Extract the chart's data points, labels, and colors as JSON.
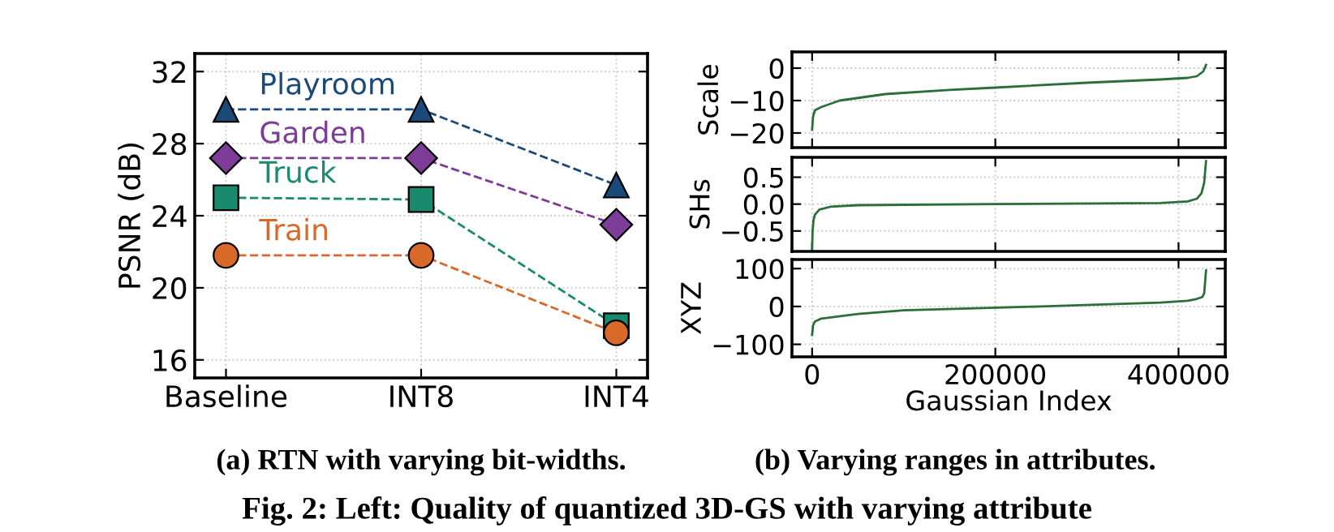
{
  "chart_data": [
    {
      "type": "line",
      "title": "(a) RTN with varying bit-widths.",
      "ylabel": "PSNR (dB)",
      "categories": [
        "Baseline",
        "INT8",
        "INT4"
      ],
      "ylim": [
        15,
        33
      ],
      "yticks": [
        16,
        20,
        24,
        28,
        32
      ],
      "grid": true,
      "line_style": "dashed",
      "series": [
        {
          "name": "Playroom",
          "color": "#1b4a7a",
          "marker": "triangle",
          "values": [
            29.9,
            29.9,
            25.7
          ]
        },
        {
          "name": "Garden",
          "color": "#7d3c98",
          "marker": "diamond",
          "values": [
            27.2,
            27.2,
            23.5
          ]
        },
        {
          "name": "Truck",
          "color": "#1a8a6e",
          "marker": "square",
          "values": [
            25.0,
            24.9,
            17.9
          ]
        },
        {
          "name": "Train",
          "color": "#d9692b",
          "marker": "circle",
          "values": [
            21.8,
            21.8,
            17.5
          ]
        }
      ],
      "annotations": [
        "Fig. 2: Left: Quality of quantized 3D-GS with varying attribute"
      ]
    },
    {
      "type": "line",
      "ylabel": "Scale",
      "xlim": [
        -22000,
        451000
      ],
      "xticks": [
        0,
        200000,
        400000
      ],
      "ylim": [
        -24.5,
        5
      ],
      "yticks": [
        0,
        {
          "value": -10,
          "label": "−10"
        },
        {
          "value": -20,
          "label": "−20"
        }
      ],
      "grid": true,
      "tick_labels": "y",
      "series": [
        {
          "color": "#2a6e3a",
          "x": [
            0,
            1000,
            3000,
            10000,
            30000,
            80000,
            150000,
            200000,
            300000,
            380000,
            410000,
            420000,
            427000,
            430000
          ],
          "values": [
            -19,
            -15,
            -13,
            -12,
            -10,
            -8,
            -6.7,
            -6,
            -4.5,
            -3.5,
            -3,
            -2.5,
            -1,
            1
          ]
        }
      ]
    },
    {
      "type": "line",
      "ylabel": "SHs",
      "xlim": [
        -22000,
        451000
      ],
      "xticks": [
        0,
        200000,
        400000
      ],
      "ylim": [
        -0.88,
        0.87
      ],
      "yticks": [
        0.5,
        {
          "value": 0,
          "label": "0.0"
        },
        {
          "value": -0.5,
          "label": "−0.5"
        }
      ],
      "grid": true,
      "tick_labels": "y",
      "series": [
        {
          "color": "#2a6e3a",
          "x": [
            0,
            500,
            1500,
            3000,
            8000,
            20000,
            50000,
            200000,
            380000,
            410000,
            420000,
            425000,
            428000,
            430000
          ],
          "values": [
            -0.88,
            -0.5,
            -0.3,
            -0.2,
            -0.1,
            -0.05,
            -0.02,
            0,
            0.02,
            0.05,
            0.1,
            0.2,
            0.4,
            0.8
          ]
        }
      ]
    },
    {
      "type": "line",
      "title": "(b) Varying ranges in attributes.",
      "ylabel": "XYZ",
      "xlabel": "Gaussian Index",
      "xlim": [
        -22000,
        451000
      ],
      "xticks": [
        0,
        200000,
        400000
      ],
      "ylim": [
        -133,
        124
      ],
      "yticks": [
        100,
        0,
        {
          "value": -100,
          "label": "−100"
        }
      ],
      "grid": true,
      "series": [
        {
          "color": "#2a6e3a",
          "x": [
            0,
            1000,
            3000,
            10000,
            50000,
            100000,
            250000,
            380000,
            410000,
            420000,
            426000,
            428000,
            430000
          ],
          "values": [
            -75,
            -50,
            -40,
            -32,
            -20,
            -10,
            0,
            10,
            15,
            20,
            25,
            35,
            95
          ]
        }
      ]
    }
  ]
}
